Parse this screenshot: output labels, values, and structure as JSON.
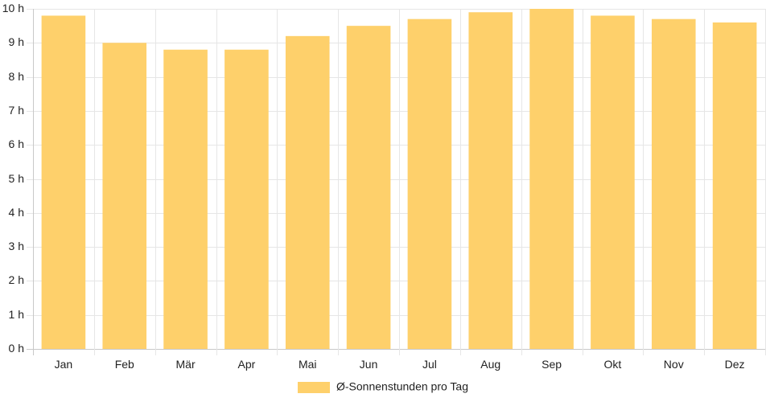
{
  "chart_data": {
    "type": "bar",
    "categories": [
      "Jan",
      "Feb",
      "Mär",
      "Apr",
      "Mai",
      "Jun",
      "Jul",
      "Aug",
      "Sep",
      "Okt",
      "Nov",
      "Dez"
    ],
    "series": [
      {
        "name": "Ø-Sonnenstunden pro Tag",
        "values": [
          9.8,
          9.0,
          8.8,
          8.8,
          9.2,
          9.5,
          9.7,
          9.9,
          10.0,
          9.8,
          9.7,
          9.6
        ],
        "color": "#fed06b"
      }
    ],
    "title": "",
    "xlabel": "",
    "ylabel": "",
    "ylim": [
      0,
      10
    ],
    "yticks": [
      "0 h",
      "1 h",
      "2 h",
      "3 h",
      "4 h",
      "5 h",
      "6 h",
      "7 h",
      "8 h",
      "9 h",
      "10 h"
    ],
    "grid": true,
    "legend_position": "bottom-center"
  }
}
